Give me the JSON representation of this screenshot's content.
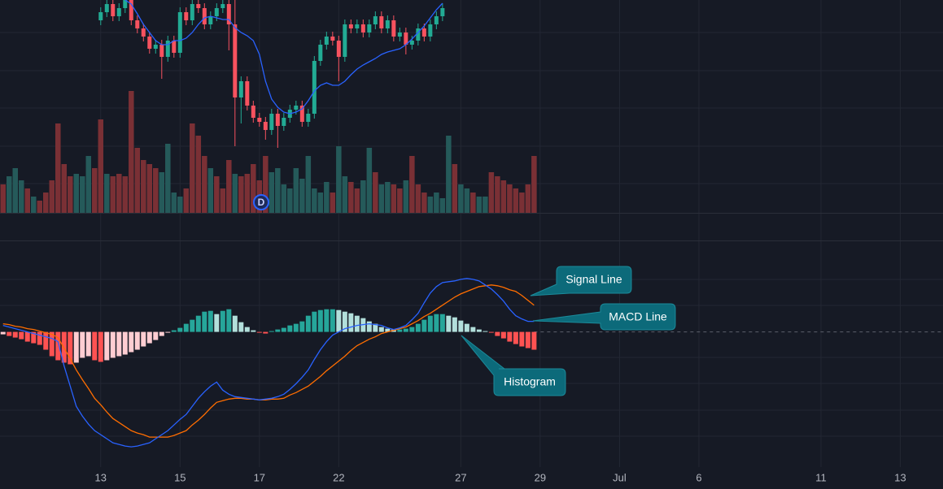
{
  "chart_data": [
    {
      "type": "candlestick",
      "xlim": [
        -0.5,
        154
      ],
      "ylim": [
        0,
        262
      ],
      "up_color": "#22ab94",
      "down_color": "#f7525f",
      "x": [
        16,
        17,
        18,
        19,
        20,
        21,
        22,
        23,
        24,
        25,
        26,
        27,
        28,
        29,
        30,
        31,
        32,
        33,
        34,
        35,
        36,
        37,
        38,
        39,
        40,
        41,
        42,
        43,
        44,
        45,
        46,
        47,
        48,
        49,
        50,
        51,
        52,
        53,
        54,
        55,
        56,
        57,
        58,
        59,
        60,
        61,
        62,
        63,
        64,
        65,
        66,
        67,
        68,
        69,
        70,
        71,
        72
      ],
      "open": [
        237,
        247,
        257,
        242,
        252,
        262,
        237,
        227,
        217,
        202,
        207,
        192,
        212,
        197,
        247,
        237,
        257,
        252,
        232,
        242,
        252,
        257,
        232,
        142,
        162,
        132,
        117,
        112,
        102,
        122,
        107,
        117,
        127,
        132,
        112,
        122,
        187,
        207,
        217,
        212,
        192,
        232,
        227,
        232,
        222,
        232,
        242,
        227,
        237,
        217,
        222,
        207,
        212,
        227,
        217,
        232,
        242
      ],
      "high": [
        253,
        263,
        263,
        258,
        268,
        268,
        243,
        233,
        223,
        213,
        213,
        218,
        218,
        253,
        253,
        263,
        263,
        258,
        248,
        258,
        263,
        268,
        268,
        168,
        168,
        138,
        123,
        118,
        128,
        128,
        123,
        133,
        138,
        138,
        128,
        193,
        213,
        223,
        223,
        218,
        238,
        238,
        238,
        238,
        238,
        248,
        248,
        243,
        243,
        228,
        228,
        218,
        233,
        233,
        238,
        248,
        258
      ],
      "low": [
        231,
        241,
        236,
        236,
        246,
        231,
        221,
        211,
        196,
        196,
        165,
        186,
        191,
        191,
        231,
        231,
        246,
        226,
        226,
        236,
        246,
        200,
        82,
        110,
        126,
        111,
        106,
        90,
        96,
        80,
        101,
        111,
        121,
        106,
        106,
        116,
        181,
        201,
        206,
        162,
        186,
        221,
        221,
        216,
        216,
        226,
        221,
        221,
        211,
        211,
        195,
        201,
        206,
        211,
        211,
        226,
        236
      ],
      "close": [
        247,
        257,
        242,
        252,
        262,
        237,
        227,
        217,
        202,
        207,
        192,
        212,
        197,
        247,
        237,
        257,
        252,
        232,
        242,
        252,
        257,
        232,
        142,
        162,
        132,
        117,
        112,
        102,
        122,
        107,
        117,
        127,
        132,
        112,
        122,
        187,
        207,
        217,
        212,
        192,
        232,
        227,
        232,
        222,
        232,
        242,
        227,
        237,
        217,
        222,
        207,
        212,
        227,
        217,
        232,
        242,
        252
      ],
      "ma": {
        "color": "#2962ff",
        "values": [
          null,
          null,
          null,
          null,
          262,
          257,
          245,
          232,
          222,
          212,
          207,
          207,
          212,
          212,
          215,
          222,
          232,
          240,
          242,
          240,
          238,
          238,
          228,
          222,
          218,
          212,
          195,
          162,
          140,
          130,
          124,
          122,
          124,
          128,
          138,
          150,
          157,
          160,
          157,
          157,
          162,
          170,
          177,
          182,
          186,
          190,
          195,
          198,
          200,
          202,
          207,
          214,
          222,
          230,
          240,
          250,
          258
        ]
      },
      "annotations": [
        "D"
      ]
    },
    {
      "type": "bar",
      "xlim": [
        -0.5,
        154
      ],
      "ylim": [
        0,
        262
      ],
      "x": [
        0,
        1,
        2,
        3,
        4,
        5,
        6,
        7,
        8,
        9,
        10,
        11,
        12,
        13,
        14,
        15,
        16,
        17,
        18,
        19,
        20,
        21,
        22,
        23,
        24,
        25,
        26,
        27,
        28,
        29,
        30,
        31,
        32,
        33,
        34,
        35,
        36,
        37,
        38,
        39,
        40,
        41,
        42,
        43,
        44,
        45,
        46,
        47,
        48,
        49,
        50,
        51,
        52,
        53,
        54,
        55,
        56,
        57,
        58,
        59,
        60,
        61,
        62,
        63,
        64,
        65,
        66,
        67,
        68,
        69,
        70,
        71,
        72,
        73,
        74,
        75,
        76,
        77,
        78,
        79,
        80,
        81,
        82,
        83,
        84,
        85,
        86,
        87
      ],
      "values": [
        35,
        45,
        55,
        40,
        30,
        20,
        15,
        25,
        40,
        110,
        60,
        45,
        48,
        45,
        70,
        55,
        115,
        48,
        45,
        48,
        45,
        150,
        80,
        65,
        60,
        55,
        50,
        85,
        25,
        20,
        30,
        110,
        95,
        70,
        55,
        45,
        30,
        65,
        48,
        45,
        48,
        60,
        40,
        70,
        50,
        55,
        35,
        30,
        55,
        42,
        70,
        30,
        25,
        38,
        25,
        82,
        45,
        38,
        30,
        40,
        80,
        50,
        35,
        38,
        35,
        30,
        40,
        70,
        35,
        25,
        20,
        25,
        18,
        95,
        60,
        35,
        30,
        25,
        20,
        20,
        50,
        45,
        40,
        35,
        30,
        25,
        35,
        70
      ],
      "colors": [
        "#7a3035",
        "#255a5a",
        "#255a5a",
        "#255a5a",
        "#7a3035",
        "#255a5a",
        "#7a3035",
        "#7a3035",
        "#7a3035",
        "#7a3035",
        "#7a3035",
        "#7a3035",
        "#255a5a",
        "#255a5a",
        "#255a5a",
        "#7a3035",
        "#7a3035",
        "#255a5a",
        "#7a3035",
        "#7a3035",
        "#7a3035",
        "#7a3035",
        "#7a3035",
        "#7a3035",
        "#7a3035",
        "#7a3035",
        "#255a5a",
        "#255a5a",
        "#255a5a",
        "#255a5a",
        "#7a3035",
        "#7a3035",
        "#7a3035",
        "#7a3035",
        "#255a5a",
        "#7a3035",
        "#7a3035",
        "#7a3035",
        "#255a5a",
        "#7a3035",
        "#7a3035",
        "#7a3035",
        "#7a3035",
        "#7a3035",
        "#255a5a",
        "#255a5a",
        "#255a5a",
        "#255a5a",
        "#255a5a",
        "#255a5a",
        "#255a5a",
        "#255a5a",
        "#255a5a",
        "#255a5a",
        "#7a3035",
        "#255a5a",
        "#255a5a",
        "#7a3035",
        "#7a3035",
        "#255a5a",
        "#255a5a",
        "#7a3035",
        "#255a5a",
        "#255a5a",
        "#7a3035",
        "#7a3035",
        "#255a5a",
        "#7a3035",
        "#7a3035",
        "#7a3035",
        "#255a5a",
        "#255a5a",
        "#255a5a",
        "#255a5a",
        "#7a3035",
        "#255a5a",
        "#255a5a",
        "#7a3035",
        "#255a5a",
        "#255a5a",
        "#7a3035",
        "#7a3035",
        "#7a3035",
        "#7a3035",
        "#7a3035",
        "#7a3035",
        "#7a3035",
        "#7a3035"
      ]
    },
    {
      "type": "macd",
      "xlim": [
        -0.5,
        154
      ],
      "ylim": [
        -167,
        112
      ],
      "xticks": [
        {
          "value": 16,
          "label": "13"
        },
        {
          "value": 29,
          "label": "15"
        },
        {
          "value": 42,
          "label": "17"
        },
        {
          "value": 55,
          "label": "22"
        },
        {
          "value": 75,
          "label": "27"
        },
        {
          "value": 88,
          "label": "29"
        },
        {
          "value": 101,
          "label": "Jul"
        },
        {
          "value": 114,
          "label": "6"
        },
        {
          "value": 134,
          "label": "11"
        },
        {
          "value": 147,
          "label": "13"
        }
      ],
      "x": [
        0,
        1,
        2,
        3,
        4,
        5,
        6,
        7,
        8,
        9,
        10,
        11,
        12,
        13,
        14,
        15,
        16,
        17,
        18,
        19,
        20,
        21,
        22,
        23,
        24,
        25,
        26,
        27,
        28,
        29,
        30,
        31,
        32,
        33,
        34,
        35,
        36,
        37,
        38,
        39,
        40,
        41,
        42,
        43,
        44,
        45,
        46,
        47,
        48,
        49,
        50,
        51,
        52,
        53,
        54,
        55,
        56,
        57,
        58,
        59,
        60,
        61,
        62,
        63,
        64,
        65,
        66,
        67,
        68,
        69,
        70,
        71,
        72,
        73,
        74,
        75,
        76,
        77,
        78,
        79,
        80,
        81,
        82,
        83,
        84,
        85,
        86,
        87
      ],
      "histogram": {
        "name": "Histogram",
        "colors": [
          "#26a69a",
          "#b2dfdb",
          "#ffcdd2",
          "#ff5252"
        ],
        "values": [
          -3,
          -5,
          -7,
          -9,
          -12,
          -14,
          -16,
          -22,
          -30,
          -35,
          -38,
          -40,
          -38,
          -32,
          -30,
          -35,
          -37,
          -35,
          -32,
          -30,
          -28,
          -25,
          -22,
          -18,
          -14,
          -10,
          -5,
          -1,
          2,
          5,
          10,
          15,
          20,
          25,
          26,
          22,
          26,
          28,
          20,
          12,
          6,
          2,
          -1,
          -2,
          1,
          3,
          5,
          8,
          10,
          13,
          20,
          25,
          27,
          28,
          28,
          27,
          25,
          23,
          20,
          17,
          13,
          10,
          6,
          4,
          3,
          3,
          4,
          6,
          10,
          15,
          20,
          22,
          22,
          20,
          18,
          14,
          10,
          6,
          3,
          1,
          -1,
          -5,
          -8,
          -12,
          -15,
          -18,
          -20,
          -22
        ]
      },
      "series": [
        {
          "name": "MACD Line",
          "color": "#2962ff",
          "values": [
            8,
            6,
            4,
            2,
            0,
            -2,
            -4,
            -6,
            -8,
            -12,
            -42,
            -67,
            -92,
            -104,
            -114,
            -122,
            -127,
            -132,
            -137,
            -139,
            -141,
            -142,
            -141,
            -139,
            -137,
            -132,
            -127,
            -122,
            -115,
            -108,
            -102,
            -92,
            -82,
            -74,
            -67,
            -62,
            -72,
            -77,
            -80,
            -81,
            -82,
            -83,
            -84,
            -83,
            -82,
            -80,
            -77,
            -71,
            -64,
            -56,
            -47,
            -34,
            -22,
            -12,
            -4,
            0,
            4,
            6,
            8,
            9,
            10,
            9,
            8,
            5,
            3,
            5,
            8,
            15,
            23,
            36,
            48,
            56,
            61,
            62,
            63,
            65,
            66,
            65,
            63,
            58,
            53,
            46,
            38,
            28,
            20,
            16,
            13,
            13
          ]
        },
        {
          "name": "Signal Line",
          "color": "#ff6d00",
          "values": [
            10,
            9,
            7,
            6,
            4,
            3,
            1,
            -1,
            -3,
            -7,
            -20,
            -33,
            -47,
            -59,
            -70,
            -82,
            -90,
            -99,
            -107,
            -112,
            -117,
            -122,
            -125,
            -127,
            -130,
            -130,
            -130,
            -130,
            -128,
            -125,
            -122,
            -115,
            -109,
            -102,
            -94,
            -87,
            -85,
            -83,
            -82,
            -82,
            -83,
            -83,
            -84,
            -84,
            -83,
            -83,
            -82,
            -78,
            -75,
            -71,
            -67,
            -61,
            -55,
            -48,
            -42,
            -36,
            -30,
            -23,
            -17,
            -13,
            -9,
            -6,
            -2,
            0,
            2,
            4,
            6,
            10,
            14,
            19,
            23,
            28,
            33,
            38,
            43,
            47,
            50,
            53,
            56,
            57,
            58,
            57,
            55,
            52,
            50,
            45,
            39,
            33
          ]
        }
      ]
    }
  ]
}
